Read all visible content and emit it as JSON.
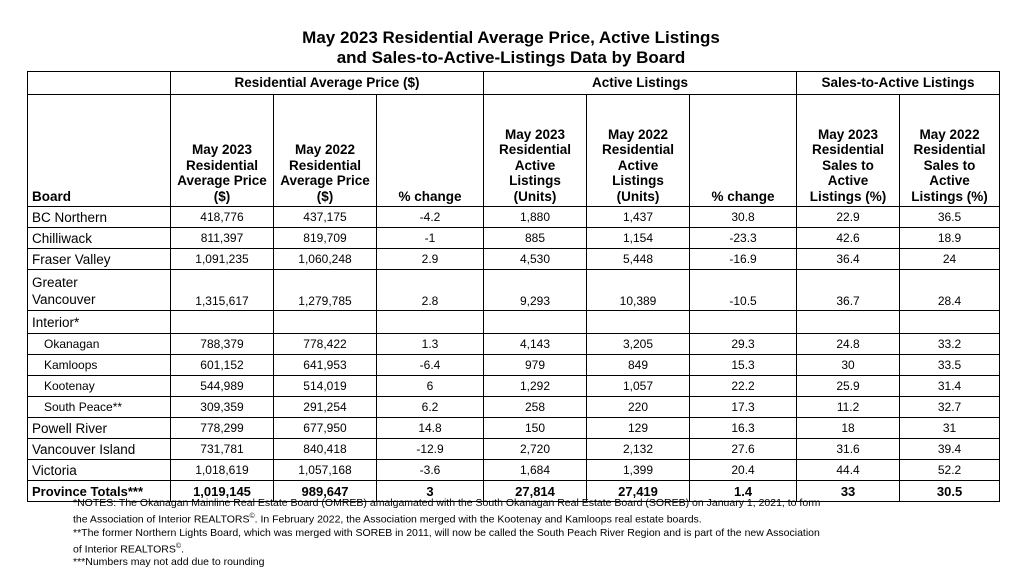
{
  "title_line1": "May 2023 Residential Average Price, Active Listings",
  "title_line2": "and Sales-to-Active-Listings Data by Board",
  "groups": {
    "price": "Residential Average Price ($)",
    "listings": "Active Listings",
    "ratio": "Sales-to-Active Listings"
  },
  "columns": {
    "board": "Board",
    "price_2023": "May 2023 Residential Average Price ($)",
    "price_2022": "May 2022 Residential Average Price ($)",
    "price_change": "% change",
    "listings_2023": "May 2023 Residential Active Listings (Units)",
    "listings_2022": "May 2022 Residential Active Listings (Units)",
    "listings_change": "% change",
    "ratio_2023": "May 2023 Residential Sales to Active Listings (%)",
    "ratio_2022": "May 2022 Residential Sales to Active Listings (%)"
  },
  "rows": [
    {
      "board": "BC Northern",
      "p23": "418,776",
      "p22": "437,175",
      "pc": "-4.2",
      "l23": "1,880",
      "l22": "1,437",
      "lc": "30.8",
      "r23": "22.9",
      "r22": "36.5"
    },
    {
      "board": "Chilliwack",
      "p23": "811,397",
      "p22": "819,709",
      "pc": "-1",
      "l23": "885",
      "l22": "1,154",
      "lc": "-23.3",
      "r23": "42.6",
      "r22": "18.9"
    },
    {
      "board": "Fraser Valley",
      "p23": "1,091,235",
      "p22": "1,060,248",
      "pc": "2.9",
      "l23": "4,530",
      "l22": "5,448",
      "lc": "-16.9",
      "r23": "36.4",
      "r22": "24"
    },
    {
      "board1": "Greater",
      "board2": "Vancouver",
      "p23": "1,315,617",
      "p22": "1,279,785",
      "pc": "2.8",
      "l23": "9,293",
      "l22": "10,389",
      "lc": "-10.5",
      "r23": "36.7",
      "r22": "28.4"
    },
    {
      "board": "Interior*"
    },
    {
      "board": "Okanagan",
      "p23": "788,379",
      "p22": "778,422",
      "pc": "1.3",
      "l23": "4,143",
      "l22": "3,205",
      "lc": "29.3",
      "r23": "24.8",
      "r22": "33.2"
    },
    {
      "board": "Kamloops",
      "p23": "601,152",
      "p22": "641,953",
      "pc": "-6.4",
      "l23": "979",
      "l22": "849",
      "lc": "15.3",
      "r23": "30",
      "r22": "33.5"
    },
    {
      "board": "Kootenay",
      "p23": "544,989",
      "p22": "514,019",
      "pc": "6",
      "l23": "1,292",
      "l22": "1,057",
      "lc": "22.2",
      "r23": "25.9",
      "r22": "31.4"
    },
    {
      "board": "South Peace**",
      "p23": "309,359",
      "p22": "291,254",
      "pc": "6.2",
      "l23": "258",
      "l22": "220",
      "lc": "17.3",
      "r23": "11.2",
      "r22": "32.7"
    },
    {
      "board": "Powell River",
      "p23": "778,299",
      "p22": "677,950",
      "pc": "14.8",
      "l23": "150",
      "l22": "129",
      "lc": "16.3",
      "r23": "18",
      "r22": "31"
    },
    {
      "board": "Vancouver Island",
      "p23": "731,781",
      "p22": "840,418",
      "pc": "-12.9",
      "l23": "2,720",
      "l22": "2,132",
      "lc": "27.6",
      "r23": "31.6",
      "r22": "39.4"
    },
    {
      "board": "Victoria",
      "p23": "1,018,619",
      "p22": "1,057,168",
      "pc": "-3.6",
      "l23": "1,684",
      "l22": "1,399",
      "lc": "20.4",
      "r23": "44.4",
      "r22": "52.2"
    },
    {
      "board": "Province Totals***",
      "p23": "1,019,145",
      "p22": "989,647",
      "pc": "3",
      "l23": "27,814",
      "l22": "27,419",
      "lc": "1.4",
      "r23": "33",
      "r22": "30.5"
    }
  ],
  "notes": {
    "n1a": "*NOTES: The Okanagan Mainline Real Estate Board (OMREB) amalgamated with the South Okanagan Real Estate Board (SOREB) on January 1, 2021, to form",
    "n1b": "the Association of Interior REALTORS",
    "n1c": ". In February 2022, the Association merged with the Kootenay and Kamloops real estate boards.",
    "n2a": "**The former Northern Lights Board, which was merged with SOREB in 2011, will now be called the South Peach River Region and is part of the new Association",
    "n2b": "of Interior REALTORS",
    "n2c": ".",
    "n3": "***Numbers may not add due to rounding",
    "reg": "©"
  }
}
